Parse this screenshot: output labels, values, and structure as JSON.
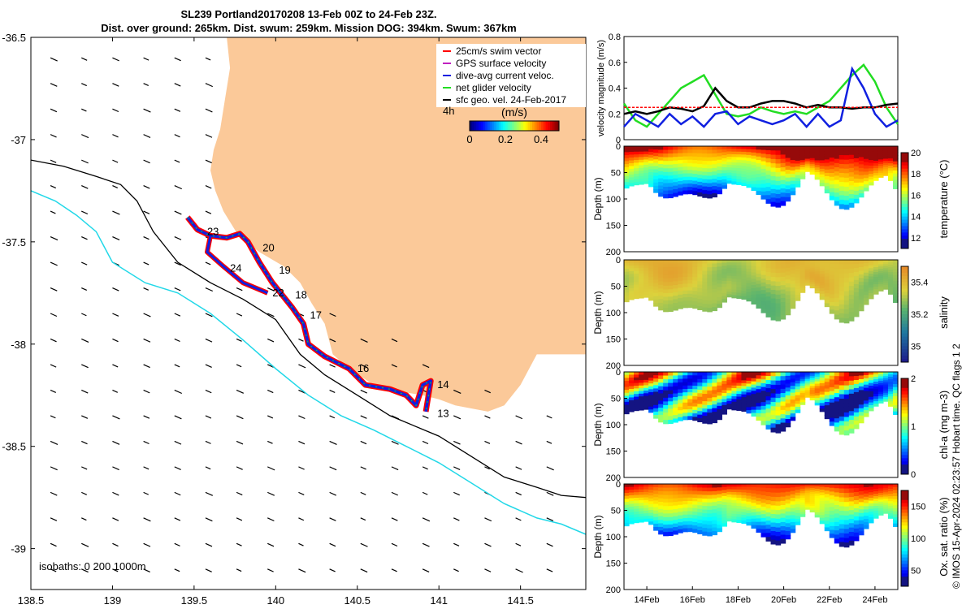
{
  "titles": {
    "line1": "SL239 Portland20170208 13-Feb 00Z to 24-Feb 23Z.",
    "line2": "Dist. over ground: 265km. Dist. swum: 259km. Mission DOG: 394km. Swum: 367km"
  },
  "credit": "© IMOS 15-Apr-2024 02:23:57 Hobart time. QC flags 1  2",
  "colors": {
    "land": "#fbc999",
    "isobath_200": "#000000",
    "isobath_1000": "#22d8e8",
    "swim": "#ff0000",
    "gps": "#c020c0",
    "current": "#1020e0",
    "net": "#22dd22",
    "geo": "#000000"
  },
  "chart_data": [
    {
      "type": "map",
      "xlim": [
        138.5,
        141.9
      ],
      "ylim": [
        -39.2,
        -36.5
      ],
      "x_ticks": [
        "138.5",
        "139",
        "139.5",
        "140",
        "140.5",
        "141",
        "141.5"
      ],
      "y_ticks": [
        "-36.5",
        "-37",
        "-37.5",
        "-38",
        "-38.5",
        "-39"
      ],
      "legend": [
        {
          "label": "25cm/s swim vector",
          "color": "#ff0000"
        },
        {
          "label": "GPS surface velocity",
          "color": "#c020c0"
        },
        {
          "label": "dive-avg current veloc.",
          "color": "#1020e0"
        },
        {
          "label": "net glider velocity",
          "color": "#22dd22"
        },
        {
          "label": "sfc geo. vel. 24-Feb-2017",
          "color": "#000000"
        }
      ],
      "legend_placement": "top-right",
      "colorbar": {
        "label": "(m/s)",
        "ticks": [
          "0",
          "0.2",
          "0.4"
        ],
        "range": [
          0,
          0.5
        ],
        "note": "4h"
      },
      "isobath_label": "isobaths: 0   200   1000m",
      "coast": [
        [
          139.7,
          -36.5
        ],
        [
          139.72,
          -36.65
        ],
        [
          139.69,
          -36.8
        ],
        [
          139.66,
          -36.95
        ],
        [
          139.62,
          -37.05
        ],
        [
          139.6,
          -37.15
        ],
        [
          139.63,
          -37.25
        ],
        [
          139.68,
          -37.35
        ],
        [
          139.78,
          -37.48
        ],
        [
          139.9,
          -37.55
        ],
        [
          140.05,
          -37.62
        ],
        [
          140.15,
          -37.7
        ],
        [
          140.22,
          -37.8
        ],
        [
          140.3,
          -37.9
        ],
        [
          140.35,
          -38.05
        ],
        [
          140.45,
          -38.12
        ],
        [
          140.6,
          -38.2
        ],
        [
          140.75,
          -38.23
        ],
        [
          140.9,
          -38.25
        ],
        [
          141.0,
          -38.27
        ],
        [
          141.1,
          -38.3
        ],
        [
          141.3,
          -38.33
        ],
        [
          141.4,
          -38.3
        ],
        [
          141.5,
          -38.2
        ],
        [
          141.6,
          -38.05
        ],
        [
          141.7,
          -38.05
        ],
        [
          141.8,
          -38.05
        ],
        [
          141.9,
          -38.05
        ]
      ],
      "isobath_200": [
        [
          138.5,
          -37.1
        ],
        [
          138.7,
          -37.13
        ],
        [
          138.9,
          -37.18
        ],
        [
          139.05,
          -37.22
        ],
        [
          139.15,
          -37.3
        ],
        [
          139.25,
          -37.45
        ],
        [
          139.4,
          -37.6
        ],
        [
          139.6,
          -37.7
        ],
        [
          139.8,
          -37.78
        ],
        [
          140.0,
          -37.88
        ],
        [
          140.15,
          -38.05
        ],
        [
          140.3,
          -38.15
        ],
        [
          140.5,
          -38.25
        ],
        [
          140.7,
          -38.35
        ],
        [
          141.0,
          -38.45
        ],
        [
          141.2,
          -38.55
        ],
        [
          141.4,
          -38.65
        ],
        [
          141.6,
          -38.7
        ],
        [
          141.75,
          -38.74
        ],
        [
          141.9,
          -38.75
        ]
      ],
      "isobath_1000": [
        [
          138.5,
          -37.25
        ],
        [
          138.65,
          -37.3
        ],
        [
          138.78,
          -37.37
        ],
        [
          138.9,
          -37.45
        ],
        [
          139.0,
          -37.6
        ],
        [
          139.2,
          -37.7
        ],
        [
          139.4,
          -37.75
        ],
        [
          139.6,
          -37.85
        ],
        [
          139.8,
          -37.98
        ],
        [
          140.0,
          -38.12
        ],
        [
          140.2,
          -38.25
        ],
        [
          140.4,
          -38.35
        ],
        [
          140.6,
          -38.42
        ],
        [
          140.8,
          -38.5
        ],
        [
          141.0,
          -38.58
        ],
        [
          141.2,
          -38.68
        ],
        [
          141.4,
          -38.78
        ],
        [
          141.6,
          -38.85
        ],
        [
          141.75,
          -38.88
        ],
        [
          141.9,
          -38.93
        ]
      ],
      "track": [
        [
          139.46,
          -37.38
        ],
        [
          139.52,
          -37.44
        ],
        [
          139.6,
          -37.47
        ],
        [
          139.7,
          -37.48
        ],
        [
          139.78,
          -37.46
        ],
        [
          139.83,
          -37.5
        ],
        [
          139.9,
          -37.6
        ],
        [
          139.98,
          -37.7
        ],
        [
          140.1,
          -37.82
        ],
        [
          140.17,
          -37.9
        ],
        [
          140.2,
          -38.0
        ],
        [
          140.3,
          -38.06
        ],
        [
          140.45,
          -38.12
        ],
        [
          140.55,
          -38.2
        ],
        [
          140.7,
          -38.22
        ],
        [
          140.8,
          -38.25
        ],
        [
          140.86,
          -38.3
        ],
        [
          140.9,
          -38.2
        ],
        [
          140.95,
          -38.18
        ],
        [
          140.92,
          -38.33
        ]
      ],
      "track2": [
        [
          139.6,
          -37.47
        ],
        [
          139.58,
          -37.55
        ],
        [
          139.68,
          -37.62
        ],
        [
          139.8,
          -37.7
        ],
        [
          139.95,
          -37.75
        ]
      ],
      "day_labels": [
        {
          "t": "13",
          "lon": 140.99,
          "lat": -38.34
        },
        {
          "t": "14",
          "lon": 140.99,
          "lat": -38.2
        },
        {
          "t": "16",
          "lon": 140.5,
          "lat": -38.12
        },
        {
          "t": "17",
          "lon": 140.21,
          "lat": -37.86
        },
        {
          "t": "18",
          "lon": 140.12,
          "lat": -37.76
        },
        {
          "t": "19",
          "lon": 140.02,
          "lat": -37.64
        },
        {
          "t": "20",
          "lon": 139.92,
          "lat": -37.53
        },
        {
          "t": "22",
          "lon": 139.98,
          "lat": -37.75
        },
        {
          "t": "23",
          "lon": 139.58,
          "lat": -37.45
        },
        {
          "t": "24",
          "lon": 139.72,
          "lat": -37.63
        }
      ]
    },
    {
      "type": "line",
      "ylabel": "velocity magnitude (m/s)",
      "ylim": [
        0,
        0.8
      ],
      "y_ticks": [
        "0",
        "0.2",
        "0.4",
        "0.6",
        "0.8"
      ],
      "xlim_days": [
        13,
        25
      ],
      "series": [
        {
          "color": "#22dd22",
          "x": [
            13,
            13.5,
            14,
            14.5,
            15,
            15.5,
            16,
            16.5,
            17,
            17.5,
            18,
            18.5,
            19,
            19.5,
            20,
            20.5,
            21,
            21.5,
            22,
            22.5,
            23,
            23.5,
            24,
            24.5,
            25
          ],
          "values": [
            0.28,
            0.15,
            0.1,
            0.2,
            0.3,
            0.4,
            0.45,
            0.5,
            0.35,
            0.2,
            0.18,
            0.2,
            0.25,
            0.22,
            0.2,
            0.22,
            0.2,
            0.25,
            0.3,
            0.4,
            0.5,
            0.58,
            0.45,
            0.25,
            0.12
          ]
        },
        {
          "color": "#1020e0",
          "x": [
            13,
            13.5,
            14,
            14.5,
            15,
            15.5,
            16,
            16.5,
            17,
            17.5,
            18,
            18.5,
            19,
            19.5,
            20,
            20.5,
            21,
            21.5,
            22,
            22.5,
            23,
            23.5,
            24,
            24.5,
            25
          ],
          "values": [
            0.1,
            0.2,
            0.15,
            0.1,
            0.2,
            0.12,
            0.18,
            0.1,
            0.2,
            0.22,
            0.12,
            0.18,
            0.15,
            0.12,
            0.15,
            0.2,
            0.1,
            0.2,
            0.1,
            0.15,
            0.55,
            0.4,
            0.2,
            0.1,
            0.15
          ]
        },
        {
          "color": "#000000",
          "x": [
            13,
            13.5,
            14,
            14.5,
            15,
            15.5,
            16,
            16.5,
            17,
            17.5,
            18,
            18.5,
            19,
            19.5,
            20,
            20.5,
            21,
            21.5,
            22,
            22.5,
            23,
            23.5,
            24,
            24.5,
            25
          ],
          "values": [
            0.2,
            0.22,
            0.2,
            0.22,
            0.25,
            0.24,
            0.22,
            0.26,
            0.4,
            0.3,
            0.25,
            0.25,
            0.28,
            0.3,
            0.3,
            0.28,
            0.25,
            0.27,
            0.25,
            0.25,
            0.24,
            0.25,
            0.25,
            0.27,
            0.28
          ]
        },
        {
          "color": "#ff0000",
          "x": [
            13,
            25
          ],
          "values": [
            0.25,
            0.25
          ]
        }
      ]
    },
    {
      "type": "heatmap",
      "ylabel": "Depth (m)",
      "clabel": "temperature (°C)",
      "crange": [
        11,
        20
      ],
      "cticks": [
        "12",
        "14",
        "16",
        "18",
        "20"
      ],
      "y_ticks": [
        "0",
        "50",
        "100",
        "150",
        "200"
      ],
      "ylim": [
        200,
        0
      ],
      "colormap": "jet"
    },
    {
      "type": "heatmap",
      "ylabel": "Depth (m)",
      "clabel": "salinity",
      "crange": [
        34.9,
        35.5
      ],
      "cticks": [
        "35",
        "35.2",
        "35.4"
      ],
      "y_ticks": [
        "0",
        "50",
        "100",
        "150",
        "200"
      ],
      "ylim": [
        200,
        0
      ],
      "colormap": "haline"
    },
    {
      "type": "heatmap",
      "ylabel": "Depth (m)",
      "clabel": "chl-a (mg m-3)",
      "crange": [
        0,
        2
      ],
      "cticks": [
        "0",
        "1",
        "2"
      ],
      "y_ticks": [
        "0",
        "50",
        "100",
        "150",
        "200"
      ],
      "ylim": [
        200,
        0
      ],
      "colormap": "jet"
    },
    {
      "type": "heatmap",
      "ylabel": "Depth (m)",
      "clabel": "Ox. sat. ratio (%)",
      "crange": [
        25,
        175
      ],
      "cticks": [
        "50",
        "100",
        "150"
      ],
      "y_ticks": [
        "0",
        "50",
        "100",
        "150",
        "200"
      ],
      "ylim": [
        200,
        0
      ],
      "colormap": "jet",
      "x_ticks": [
        "14Feb",
        "16Feb",
        "18Feb",
        "20Feb",
        "22Feb",
        "24Feb"
      ]
    }
  ]
}
